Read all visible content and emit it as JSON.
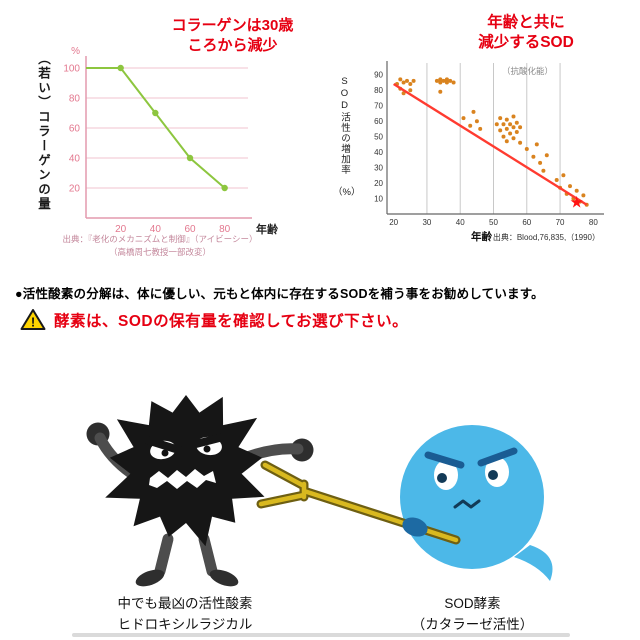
{
  "notice": {
    "bullet_line": "●活性酸素の分解は、体に優しい、元もと体内に存在するSODを補う事をお勧めしています。",
    "warning_mark": "!",
    "warning_text": "酵素は、SODの保有量を確認してお選び下さい。"
  },
  "characters": {
    "left_label_line1": "中でも最凶の活性酸素",
    "left_label_line2": "ヒドロキシルラジカル",
    "right_label_line1": "SOD酵素",
    "right_label_line2": "（カタラーゼ活性）",
    "radical_color": "#161616",
    "sod_color": "#4cb8e8",
    "fork_color": "#d9b91f"
  },
  "chart_data": [
    {
      "type": "line",
      "title": "コラーゲンは30歳ころから減少",
      "title_lines": [
        "コラーゲンは30歳",
        "ころから減少"
      ],
      "ylabel": "（若い）コラーゲンの量",
      "yunit": "%",
      "xlabel": "年齢",
      "x": [
        0,
        20,
        40,
        60,
        80
      ],
      "y": [
        100,
        100,
        70,
        40,
        20
      ],
      "xticks": [
        20,
        40,
        60,
        80
      ],
      "yticks": [
        100,
        80,
        60,
        40,
        20
      ],
      "xlim": [
        0,
        90
      ],
      "ylim": [
        0,
        100
      ],
      "grid": true,
      "line_color": "#8dc63f",
      "axis_color": "#e39aae",
      "grid_color": "#f0c3cf",
      "tick_color": "#e3788f",
      "source_lines": [
        "出典：『老化のメカニズムと制御』（アイビーシー）",
        "（高橋周七教授一部改変）"
      ]
    },
    {
      "type": "scatter",
      "title": "年齢と共に減少するSOD",
      "title_lines": [
        "年齢と共に",
        "減少するSOD"
      ],
      "subtitle": "（抗酸化能）",
      "ylabel": "SOD活性の増加率",
      "yunit": "（%）",
      "xlabel": "年齢",
      "xticks": [
        20,
        30,
        40,
        50,
        60,
        70,
        80
      ],
      "yticks": [
        10,
        20,
        30,
        40,
        50,
        60,
        70,
        80,
        90
      ],
      "xlim": [
        18,
        82
      ],
      "ylim": [
        0,
        95
      ],
      "grid": true,
      "points": [
        [
          21,
          84
        ],
        [
          22,
          87
        ],
        [
          22,
          81
        ],
        [
          23,
          85
        ],
        [
          23,
          78
        ],
        [
          24,
          86
        ],
        [
          25,
          84
        ],
        [
          25,
          80
        ],
        [
          26,
          86
        ],
        [
          33,
          86
        ],
        [
          34,
          87
        ],
        [
          34,
          85
        ],
        [
          35,
          86
        ],
        [
          36,
          87
        ],
        [
          36,
          85
        ],
        [
          37,
          86
        ],
        [
          38,
          85
        ],
        [
          34,
          79
        ],
        [
          41,
          62
        ],
        [
          43,
          57
        ],
        [
          44,
          66
        ],
        [
          45,
          60
        ],
        [
          46,
          55
        ],
        [
          51,
          58
        ],
        [
          52,
          62
        ],
        [
          52,
          54
        ],
        [
          53,
          58
        ],
        [
          53,
          50
        ],
        [
          54,
          61
        ],
        [
          54,
          55
        ],
        [
          54,
          47
        ],
        [
          55,
          58
        ],
        [
          55,
          52
        ],
        [
          56,
          63
        ],
        [
          56,
          56
        ],
        [
          56,
          49
        ],
        [
          57,
          59
        ],
        [
          57,
          53
        ],
        [
          58,
          46
        ],
        [
          58,
          56
        ],
        [
          60,
          42
        ],
        [
          62,
          37
        ],
        [
          63,
          45
        ],
        [
          64,
          33
        ],
        [
          65,
          28
        ],
        [
          66,
          38
        ],
        [
          69,
          22
        ],
        [
          70,
          17
        ],
        [
          71,
          25
        ],
        [
          72,
          13
        ],
        [
          73,
          18
        ],
        [
          74,
          10
        ],
        [
          75,
          15
        ],
        [
          76,
          8
        ],
        [
          77,
          12
        ],
        [
          78,
          6
        ]
      ],
      "trend": {
        "x1": 20,
        "y1": 84,
        "x2": 78,
        "y2": 6
      },
      "highlight": {
        "x": 75,
        "y": 8,
        "symbol": "★"
      },
      "point_color": "#d9831f",
      "trend_color": "#ff3b30",
      "grid_color": "#c8c8c8",
      "axis_color": "#666666",
      "source": "出典：Blood,76,835,（1990）"
    }
  ]
}
